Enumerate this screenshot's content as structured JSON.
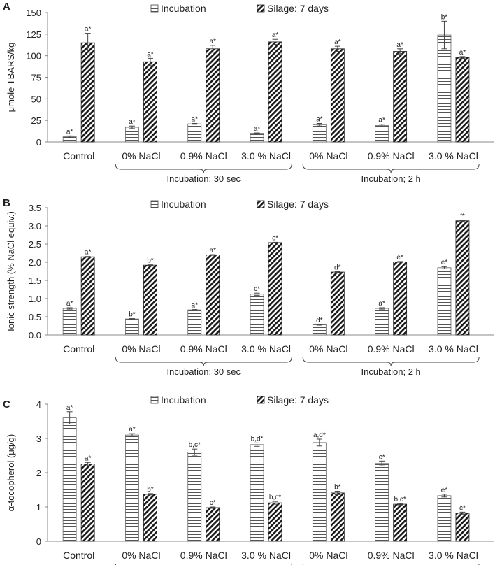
{
  "legend": {
    "incubation": "Incubation",
    "silage": "Silage: 7 days"
  },
  "groups": [
    {
      "label": "Incubation; 30 sec",
      "from": 1,
      "to": 3
    },
    {
      "label": "Incubation; 2 h",
      "from": 4,
      "to": 6
    }
  ],
  "chart_data": [
    {
      "panel": "A",
      "type": "bar",
      "ylabel": "μmole TBARS/kg",
      "ylim": [
        0,
        150
      ],
      "yticks": [
        0,
        25,
        50,
        75,
        100,
        125,
        150
      ],
      "tick_decimals": 0,
      "categories": [
        "Control",
        "0% NaCl",
        "0.9% NaCl",
        "3.0 % NaCl",
        "0% NaCl",
        "0.9% NaCl",
        "3.0 % NaCl"
      ],
      "series": [
        {
          "name": "Incubation",
          "values": [
            6,
            17,
            21,
            10,
            20,
            19,
            124
          ],
          "errors": [
            1,
            1.5,
            0.5,
            0.5,
            1.5,
            1.5,
            16
          ],
          "labels": [
            "a*",
            "a*",
            "a*",
            "a*",
            "a*",
            "a*",
            "b*"
          ]
        },
        {
          "name": "Silage: 7 days",
          "values": [
            115,
            93,
            108,
            116,
            108,
            105,
            98
          ],
          "errors": [
            11,
            4,
            4,
            3,
            3,
            3,
            1
          ],
          "labels": [
            "a*",
            "a*",
            "a*",
            "a*",
            "a*",
            "a*",
            "a*"
          ]
        }
      ]
    },
    {
      "panel": "B",
      "type": "bar",
      "ylabel": "Ionic strength (% NaCl equiv.)",
      "ylim": [
        0,
        3.5
      ],
      "yticks": [
        0,
        0.5,
        1,
        1.5,
        2,
        2.5,
        3,
        3.5
      ],
      "tick_decimals": 1,
      "categories": [
        "Control",
        "0% NaCl",
        "0.9% NaCl",
        "3.0 % NaCl",
        "0% NaCl",
        "0.9% NaCl",
        "3.0 % NaCl"
      ],
      "series": [
        {
          "name": "Incubation",
          "values": [
            0.73,
            0.44,
            0.69,
            1.12,
            0.28,
            0.73,
            1.85
          ],
          "errors": [
            0.02,
            0.01,
            0.01,
            0.03,
            0.01,
            0.02,
            0.03
          ],
          "labels": [
            "a*",
            "b*",
            "a*",
            "c*",
            "d*",
            "a*",
            "e*"
          ]
        },
        {
          "name": "Silage: 7 days",
          "values": [
            2.15,
            1.92,
            2.2,
            2.54,
            1.73,
            2.01,
            3.14
          ],
          "errors": [
            0.01,
            0.01,
            0.01,
            0.01,
            0.01,
            0.01,
            0.01
          ],
          "labels": [
            "a*",
            "b*",
            "a*",
            "c*",
            "d*",
            "e*",
            "f*"
          ]
        }
      ]
    },
    {
      "panel": "C",
      "type": "bar",
      "ylabel": "α-tocopherol (μg/g)",
      "ylim": [
        0,
        4
      ],
      "yticks": [
        0,
        1,
        2,
        3,
        4
      ],
      "tick_decimals": 0,
      "categories": [
        "Control",
        "0% NaCl",
        "0.9% NaCl",
        "3.0 % NaCl",
        "0% NaCl",
        "0.9% NaCl",
        "3.0 % NaCl"
      ],
      "series": [
        {
          "name": "Incubation",
          "values": [
            3.6,
            3.1,
            2.6,
            2.82,
            2.88,
            2.27,
            1.33
          ],
          "errors": [
            0.18,
            0.04,
            0.09,
            0.05,
            0.1,
            0.07,
            0.04
          ],
          "labels": [
            "a*",
            "a*",
            "b,c*",
            "b,d*",
            "a,d*",
            "c*",
            "e*"
          ]
        },
        {
          "name": "Silage: 7 days",
          "values": [
            2.25,
            1.37,
            0.98,
            1.12,
            1.41,
            1.08,
            0.82
          ],
          "errors": [
            0.05,
            0.02,
            0.02,
            0.04,
            0.05,
            0.02,
            0.03
          ],
          "labels": [
            "a*",
            "b*",
            "c*",
            "b,c*",
            "b*",
            "b,c*",
            "c*"
          ]
        }
      ]
    }
  ]
}
